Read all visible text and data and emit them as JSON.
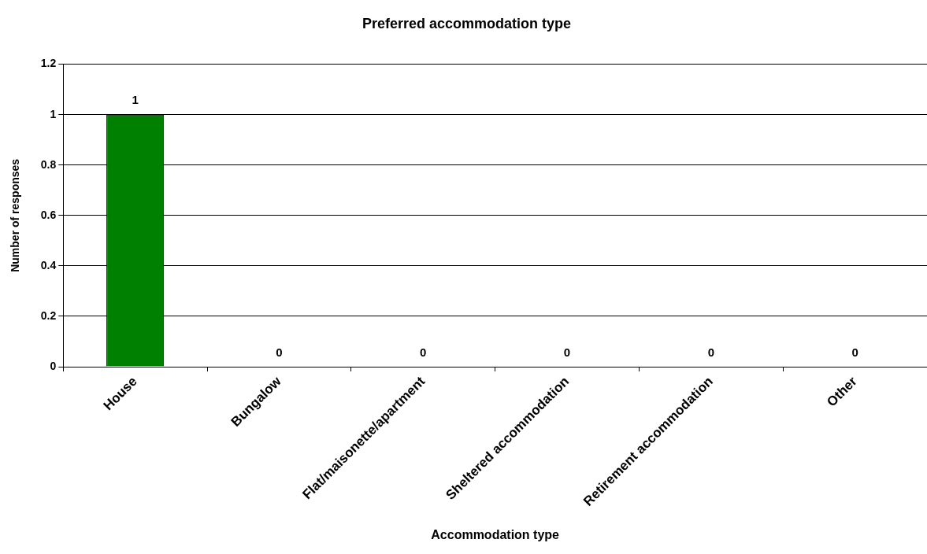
{
  "chart_data": {
    "type": "bar",
    "title": "Preferred accommodation type",
    "xlabel": "Accommodation type",
    "ylabel": "Number of responses",
    "categories": [
      "House",
      "Bungalow",
      "Flat/maisonette/apartment",
      "Sheltered accommodation",
      "Retirement accommodation",
      "Other"
    ],
    "values": [
      1,
      0,
      0,
      0,
      0,
      0
    ],
    "color": "#008000",
    "ylim": [
      0,
      1.2
    ],
    "yticks": [
      0,
      0.2,
      0.4,
      0.6,
      0.8,
      1,
      1.2
    ],
    "grid": "y",
    "legend": false,
    "data_labels": true
  }
}
